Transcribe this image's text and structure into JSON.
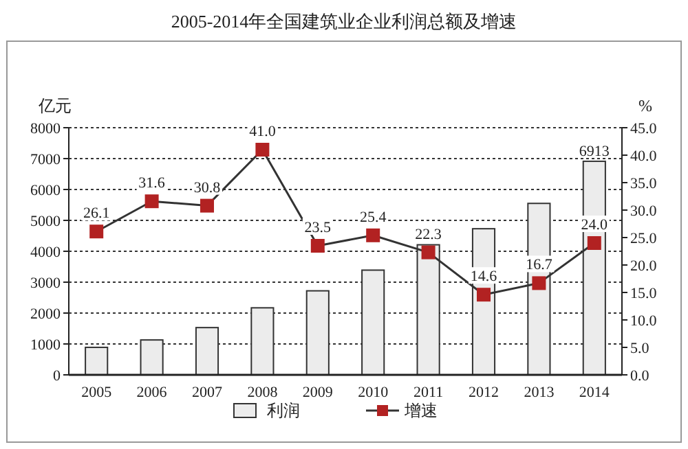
{
  "chart_data": {
    "type": "bar",
    "title": "2005-2014年全国建筑业企业利润总额及增速",
    "ylabel": "亿元",
    "y2label": "%",
    "categories": [
      "2005",
      "2006",
      "2007",
      "2008",
      "2009",
      "2010",
      "2011",
      "2012",
      "2013",
      "2014"
    ],
    "series": [
      {
        "name": "利润",
        "color": "#ececec",
        "values": [
          890,
          1130,
          1530,
          2170,
          2720,
          3390,
          4210,
          4730,
          5550,
          6913
        ],
        "value_labels": [
          null,
          null,
          null,
          null,
          null,
          null,
          null,
          null,
          null,
          "6913"
        ]
      },
      {
        "name": "增速",
        "type": "line",
        "axis": "y2",
        "color": "#b22222",
        "marker": "square",
        "values": [
          26.1,
          31.6,
          30.8,
          41.0,
          23.5,
          25.4,
          22.3,
          14.6,
          16.7,
          24.0
        ],
        "value_labels": [
          "26.1",
          "31.6",
          "30.8",
          "41.0",
          "23.5",
          "25.4",
          "22.3",
          "14.6",
          "16.7",
          "24.0"
        ]
      }
    ],
    "ylim": [
      0,
      8000
    ],
    "yticks": [
      0,
      1000,
      2000,
      3000,
      4000,
      5000,
      6000,
      7000,
      8000
    ],
    "y2lim": [
      0,
      45
    ],
    "y2ticks": [
      {
        "value": 0,
        "label": "0.0"
      },
      {
        "value": 5,
        "label": "5.0"
      },
      {
        "value": 10,
        "label": "10.0"
      },
      {
        "value": 15,
        "label": "15.0"
      },
      {
        "value": 20,
        "label": "20.0"
      },
      {
        "value": 25,
        "label": "25.0"
      },
      {
        "value": 30,
        "label": "30.0"
      },
      {
        "value": 35,
        "label": "35.0"
      },
      {
        "value": 40,
        "label": "40.0"
      },
      {
        "value": 45,
        "label": "45.0"
      }
    ],
    "grid": "y",
    "legend": "bottom"
  }
}
